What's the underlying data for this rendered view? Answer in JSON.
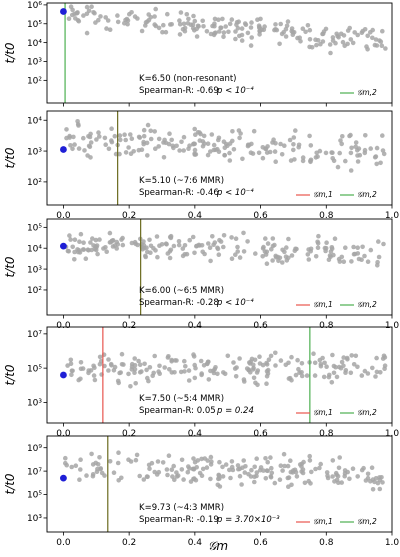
{
  "figure": {
    "xlabel": "𝒢m",
    "ylabel": "t/t0"
  },
  "colors": {
    "points": "#a6a6a6",
    "highlight": "#1f1fd6",
    "line_g1": "#e8554e",
    "line_g2": "#4caf50",
    "line_overlap": "#6b6b1f"
  },
  "chart_data": [
    {
      "type": "scatter",
      "annotation": "K=6.50 (non-resonant)",
      "spearman": "Spearman-R: -0.69",
      "pvalue": "p < 10⁻⁴",
      "xlim": [
        -0.05,
        1.0
      ],
      "ylog": true,
      "ylim_exp": [
        0.8,
        6.1
      ],
      "ytick_exps": [
        2,
        3,
        4,
        5,
        6
      ],
      "xticks": [
        0.0,
        0.2,
        0.4,
        0.6,
        0.8,
        1.0
      ],
      "show_xticklabels": false,
      "vlines": [
        {
          "x": 0.005,
          "color": "#4caf50"
        }
      ],
      "legend": [
        {
          "label": "𝒢m,2",
          "color": "#4caf50"
        }
      ],
      "highlight": {
        "x": 0.0,
        "y_exp": 5.65
      },
      "trend": {
        "start_exp": 5.5,
        "end_exp": 4.0,
        "spread": 0.55
      },
      "n": 200,
      "seed": 11
    },
    {
      "type": "scatter",
      "annotation": "K=5.10 (~7:6 MMR)",
      "spearman": "Spearman-R: -0.46",
      "pvalue": "p < 10⁻⁴",
      "xlim": [
        -0.05,
        1.0
      ],
      "ylog": true,
      "ylim_exp": [
        1.25,
        4.3
      ],
      "ytick_exps": [
        2,
        3,
        4
      ],
      "xticks": [
        0.0,
        0.2,
        0.4,
        0.6,
        0.8,
        1.0
      ],
      "show_xticklabels": true,
      "vlines": [
        {
          "x": 0.165,
          "color": "#6b6b1f"
        }
      ],
      "legend": [
        {
          "label": "𝒢m,1",
          "color": "#e8554e"
        },
        {
          "label": "𝒢m,2",
          "color": "#4caf50"
        }
      ],
      "highlight": {
        "x": 0.0,
        "y_exp": 3.05
      },
      "trend": {
        "start_exp": 3.45,
        "end_exp": 2.9,
        "spread": 0.45
      },
      "n": 200,
      "seed": 23
    },
    {
      "type": "scatter",
      "annotation": "K=6.00 (~6:5 MMR)",
      "spearman": "Spearman-R: -0.28",
      "pvalue": "p < 10⁻⁴",
      "xlim": [
        -0.05,
        1.0
      ],
      "ylog": true,
      "ylim_exp": [
        0.8,
        5.4
      ],
      "ytick_exps": [
        2,
        3,
        4,
        5
      ],
      "xticks": [
        0.0,
        0.2,
        0.4,
        0.6,
        0.8,
        1.0
      ],
      "show_xticklabels": true,
      "vlines": [
        {
          "x": 0.235,
          "color": "#6b6b1f"
        }
      ],
      "legend": [
        {
          "label": "𝒢m,1",
          "color": "#e8554e"
        },
        {
          "label": "𝒢m,2",
          "color": "#4caf50"
        }
      ],
      "highlight": {
        "x": 0.0,
        "y_exp": 4.1
      },
      "trend": {
        "start_exp": 4.15,
        "end_exp": 3.7,
        "spread": 0.5
      },
      "n": 200,
      "seed": 37
    },
    {
      "type": "scatter",
      "annotation": "K=7.50 (~5:4 MMR)",
      "spearman": "Spearman-R: 0.05",
      "pvalue": "p = 0.24",
      "xlim": [
        -0.05,
        1.0
      ],
      "ylog": true,
      "ylim_exp": [
        1.8,
        7.4
      ],
      "ytick_exps": [
        3,
        5,
        7
      ],
      "xticks": [
        0.0,
        0.2,
        0.4,
        0.6,
        0.8,
        1.0
      ],
      "show_xticklabels": true,
      "vlines": [
        {
          "x": 0.12,
          "color": "#e8554e"
        },
        {
          "x": 0.75,
          "color": "#4caf50"
        }
      ],
      "legend": [
        {
          "label": "𝒢m,1",
          "color": "#e8554e"
        },
        {
          "label": "𝒢m,2",
          "color": "#4caf50"
        }
      ],
      "highlight": {
        "x": 0.0,
        "y_exp": 4.6
      },
      "trend": {
        "start_exp": 5.0,
        "end_exp": 5.1,
        "spread": 0.75
      },
      "n": 200,
      "seed": 53
    },
    {
      "type": "scatter",
      "annotation": "K=9.73 (~4:3 MMR)",
      "spearman": "Spearman-R: -0.19",
      "pvalue": "p = 3.70×10⁻³",
      "xlim": [
        -0.05,
        1.0
      ],
      "ylog": true,
      "ylim_exp": [
        1.8,
        10.0
      ],
      "ytick_exps": [
        3,
        5,
        7,
        9
      ],
      "xticks": [
        0.0,
        0.2,
        0.4,
        0.6,
        0.8,
        1.0
      ],
      "show_xticklabels": true,
      "vlines": [
        {
          "x": 0.135,
          "color": "#6b6b1f"
        }
      ],
      "legend": [
        {
          "label": "𝒢m,1",
          "color": "#e8554e"
        },
        {
          "label": "𝒢m,2",
          "color": "#4caf50"
        }
      ],
      "highlight": {
        "x": 0.0,
        "y_exp": 6.4
      },
      "trend": {
        "start_exp": 7.5,
        "end_exp": 6.6,
        "spread": 1.0
      },
      "n": 200,
      "seed": 71
    }
  ]
}
